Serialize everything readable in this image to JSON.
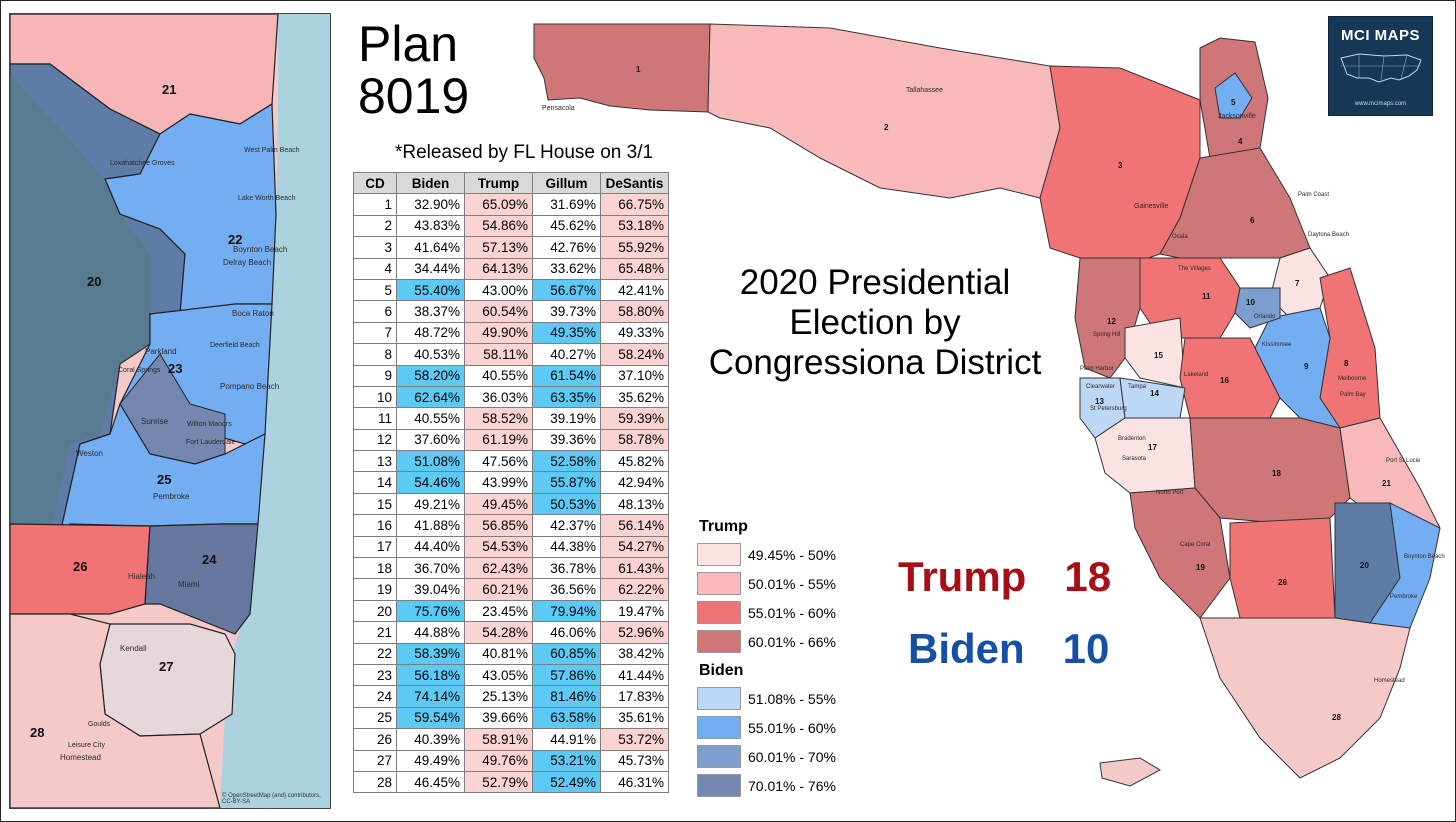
{
  "plan_title": "Plan 8019",
  "released": "*Released by FL House on 3/1",
  "main_title": "2020 Presidential Election by Congressiona District",
  "logo": {
    "text": "MCI MAPS",
    "url": "www.mcimaps.com"
  },
  "table": {
    "headers": [
      "CD",
      "Biden",
      "Trump",
      "Gillum",
      "DeSantis"
    ],
    "rows": [
      [
        "1",
        "32.90%",
        "65.09%",
        "31.69%",
        "66.75%"
      ],
      [
        "2",
        "43.83%",
        "54.86%",
        "45.62%",
        "53.18%"
      ],
      [
        "3",
        "41.64%",
        "57.13%",
        "42.76%",
        "55.92%"
      ],
      [
        "4",
        "34.44%",
        "64.13%",
        "33.62%",
        "65.48%"
      ],
      [
        "5",
        "55.40%",
        "43.00%",
        "56.67%",
        "42.41%"
      ],
      [
        "6",
        "38.37%",
        "60.54%",
        "39.73%",
        "58.80%"
      ],
      [
        "7",
        "48.72%",
        "49.90%",
        "49.35%",
        "49.33%"
      ],
      [
        "8",
        "40.53%",
        "58.11%",
        "40.27%",
        "58.24%"
      ],
      [
        "9",
        "58.20%",
        "40.55%",
        "61.54%",
        "37.10%"
      ],
      [
        "10",
        "62.64%",
        "36.03%",
        "63.35%",
        "35.62%"
      ],
      [
        "11",
        "40.55%",
        "58.52%",
        "39.19%",
        "59.39%"
      ],
      [
        "12",
        "37.60%",
        "61.19%",
        "39.36%",
        "58.78%"
      ],
      [
        "13",
        "51.08%",
        "47.56%",
        "52.58%",
        "45.82%"
      ],
      [
        "14",
        "54.46%",
        "43.99%",
        "55.87%",
        "42.94%"
      ],
      [
        "15",
        "49.21%",
        "49.45%",
        "50.53%",
        "48.13%"
      ],
      [
        "16",
        "41.88%",
        "56.85%",
        "42.37%",
        "56.14%"
      ],
      [
        "17",
        "44.40%",
        "54.53%",
        "44.38%",
        "54.27%"
      ],
      [
        "18",
        "36.70%",
        "62.43%",
        "36.78%",
        "61.43%"
      ],
      [
        "19",
        "39.04%",
        "60.21%",
        "36.56%",
        "62.22%"
      ],
      [
        "20",
        "75.76%",
        "23.45%",
        "79.94%",
        "19.47%"
      ],
      [
        "21",
        "44.88%",
        "54.28%",
        "46.06%",
        "52.96%"
      ],
      [
        "22",
        "58.39%",
        "40.81%",
        "60.85%",
        "38.42%"
      ],
      [
        "23",
        "56.18%",
        "43.05%",
        "57.86%",
        "41.44%"
      ],
      [
        "24",
        "74.14%",
        "25.13%",
        "81.46%",
        "17.83%"
      ],
      [
        "25",
        "59.54%",
        "39.66%",
        "63.58%",
        "35.61%"
      ],
      [
        "26",
        "40.39%",
        "58.91%",
        "44.91%",
        "53.72%"
      ],
      [
        "27",
        "49.49%",
        "49.76%",
        "53.21%",
        "45.73%"
      ],
      [
        "28",
        "46.45%",
        "52.79%",
        "52.49%",
        "46.31%"
      ]
    ]
  },
  "legend": {
    "trump_title": "Trump",
    "trump": [
      {
        "label": "49.45% - 50%",
        "color": "#fbe3e3"
      },
      {
        "label": "50.01% - 55%",
        "color": "#f8b9ba"
      },
      {
        "label": "55.01% - 60%",
        "color": "#f07376"
      },
      {
        "label": "60.01% - 66%",
        "color": "#cf7678"
      }
    ],
    "biden_title": "Biden",
    "biden": [
      {
        "label": "51.08% - 55%",
        "color": "#bdd8f7"
      },
      {
        "label": "55.01% - 60%",
        "color": "#74aef2"
      },
      {
        "label": "60.01% - 70%",
        "color": "#7d9fcf"
      },
      {
        "label": "70.01% - 76%",
        "color": "#7387b0"
      }
    ]
  },
  "tally": {
    "trump_label": "Trump",
    "trump_count": "18",
    "biden_label": "Biden",
    "biden_count": "10"
  },
  "inset_districts": [
    "21",
    "22",
    "20",
    "23",
    "25",
    "26",
    "24",
    "27",
    "28"
  ],
  "inset_places": [
    "Boca Raton",
    "Delray Beach",
    "Boynton Beach",
    "Pompano Beach",
    "Weston",
    "Pembroke",
    "Hialeah",
    "Miami",
    "Kendall",
    "Homestead",
    "Leisure City",
    "Parkland",
    "Sunrise",
    "Coral Springs",
    "Wilton Manors",
    "West Palm Beach",
    "Lake Worth Beach",
    "Goulds",
    "Deerfield Beach",
    "Fort Lauderdale",
    "Loxahatchee Groves"
  ],
  "state_districts": [
    "1",
    "2",
    "3",
    "4",
    "5",
    "6",
    "7",
    "8",
    "9",
    "10",
    "11",
    "12",
    "13",
    "14",
    "15",
    "16",
    "17",
    "18",
    "19",
    "20",
    "21",
    "26",
    "28"
  ],
  "state_places": [
    "Pensacola",
    "Tallahassee",
    "Gainesville",
    "Jacksonville",
    "Palm Coast",
    "Daytona Beach",
    "Ocala",
    "The Villages",
    "Orlando",
    "Kissimmee",
    "Melbourne",
    "Palm Bay",
    "Spring Hill",
    "Palm Harbor",
    "Clearwater",
    "Tampa",
    "St Petersburg",
    "Lakeland",
    "Bradenton",
    "Sarasota",
    "North Port",
    "Port St Lucie",
    "Cape Coral",
    "Boynton Beach",
    "Pembroke",
    "Homestead"
  ],
  "attribution": "© OpenStreetMap (and) contributors, CC-BY-SA"
}
